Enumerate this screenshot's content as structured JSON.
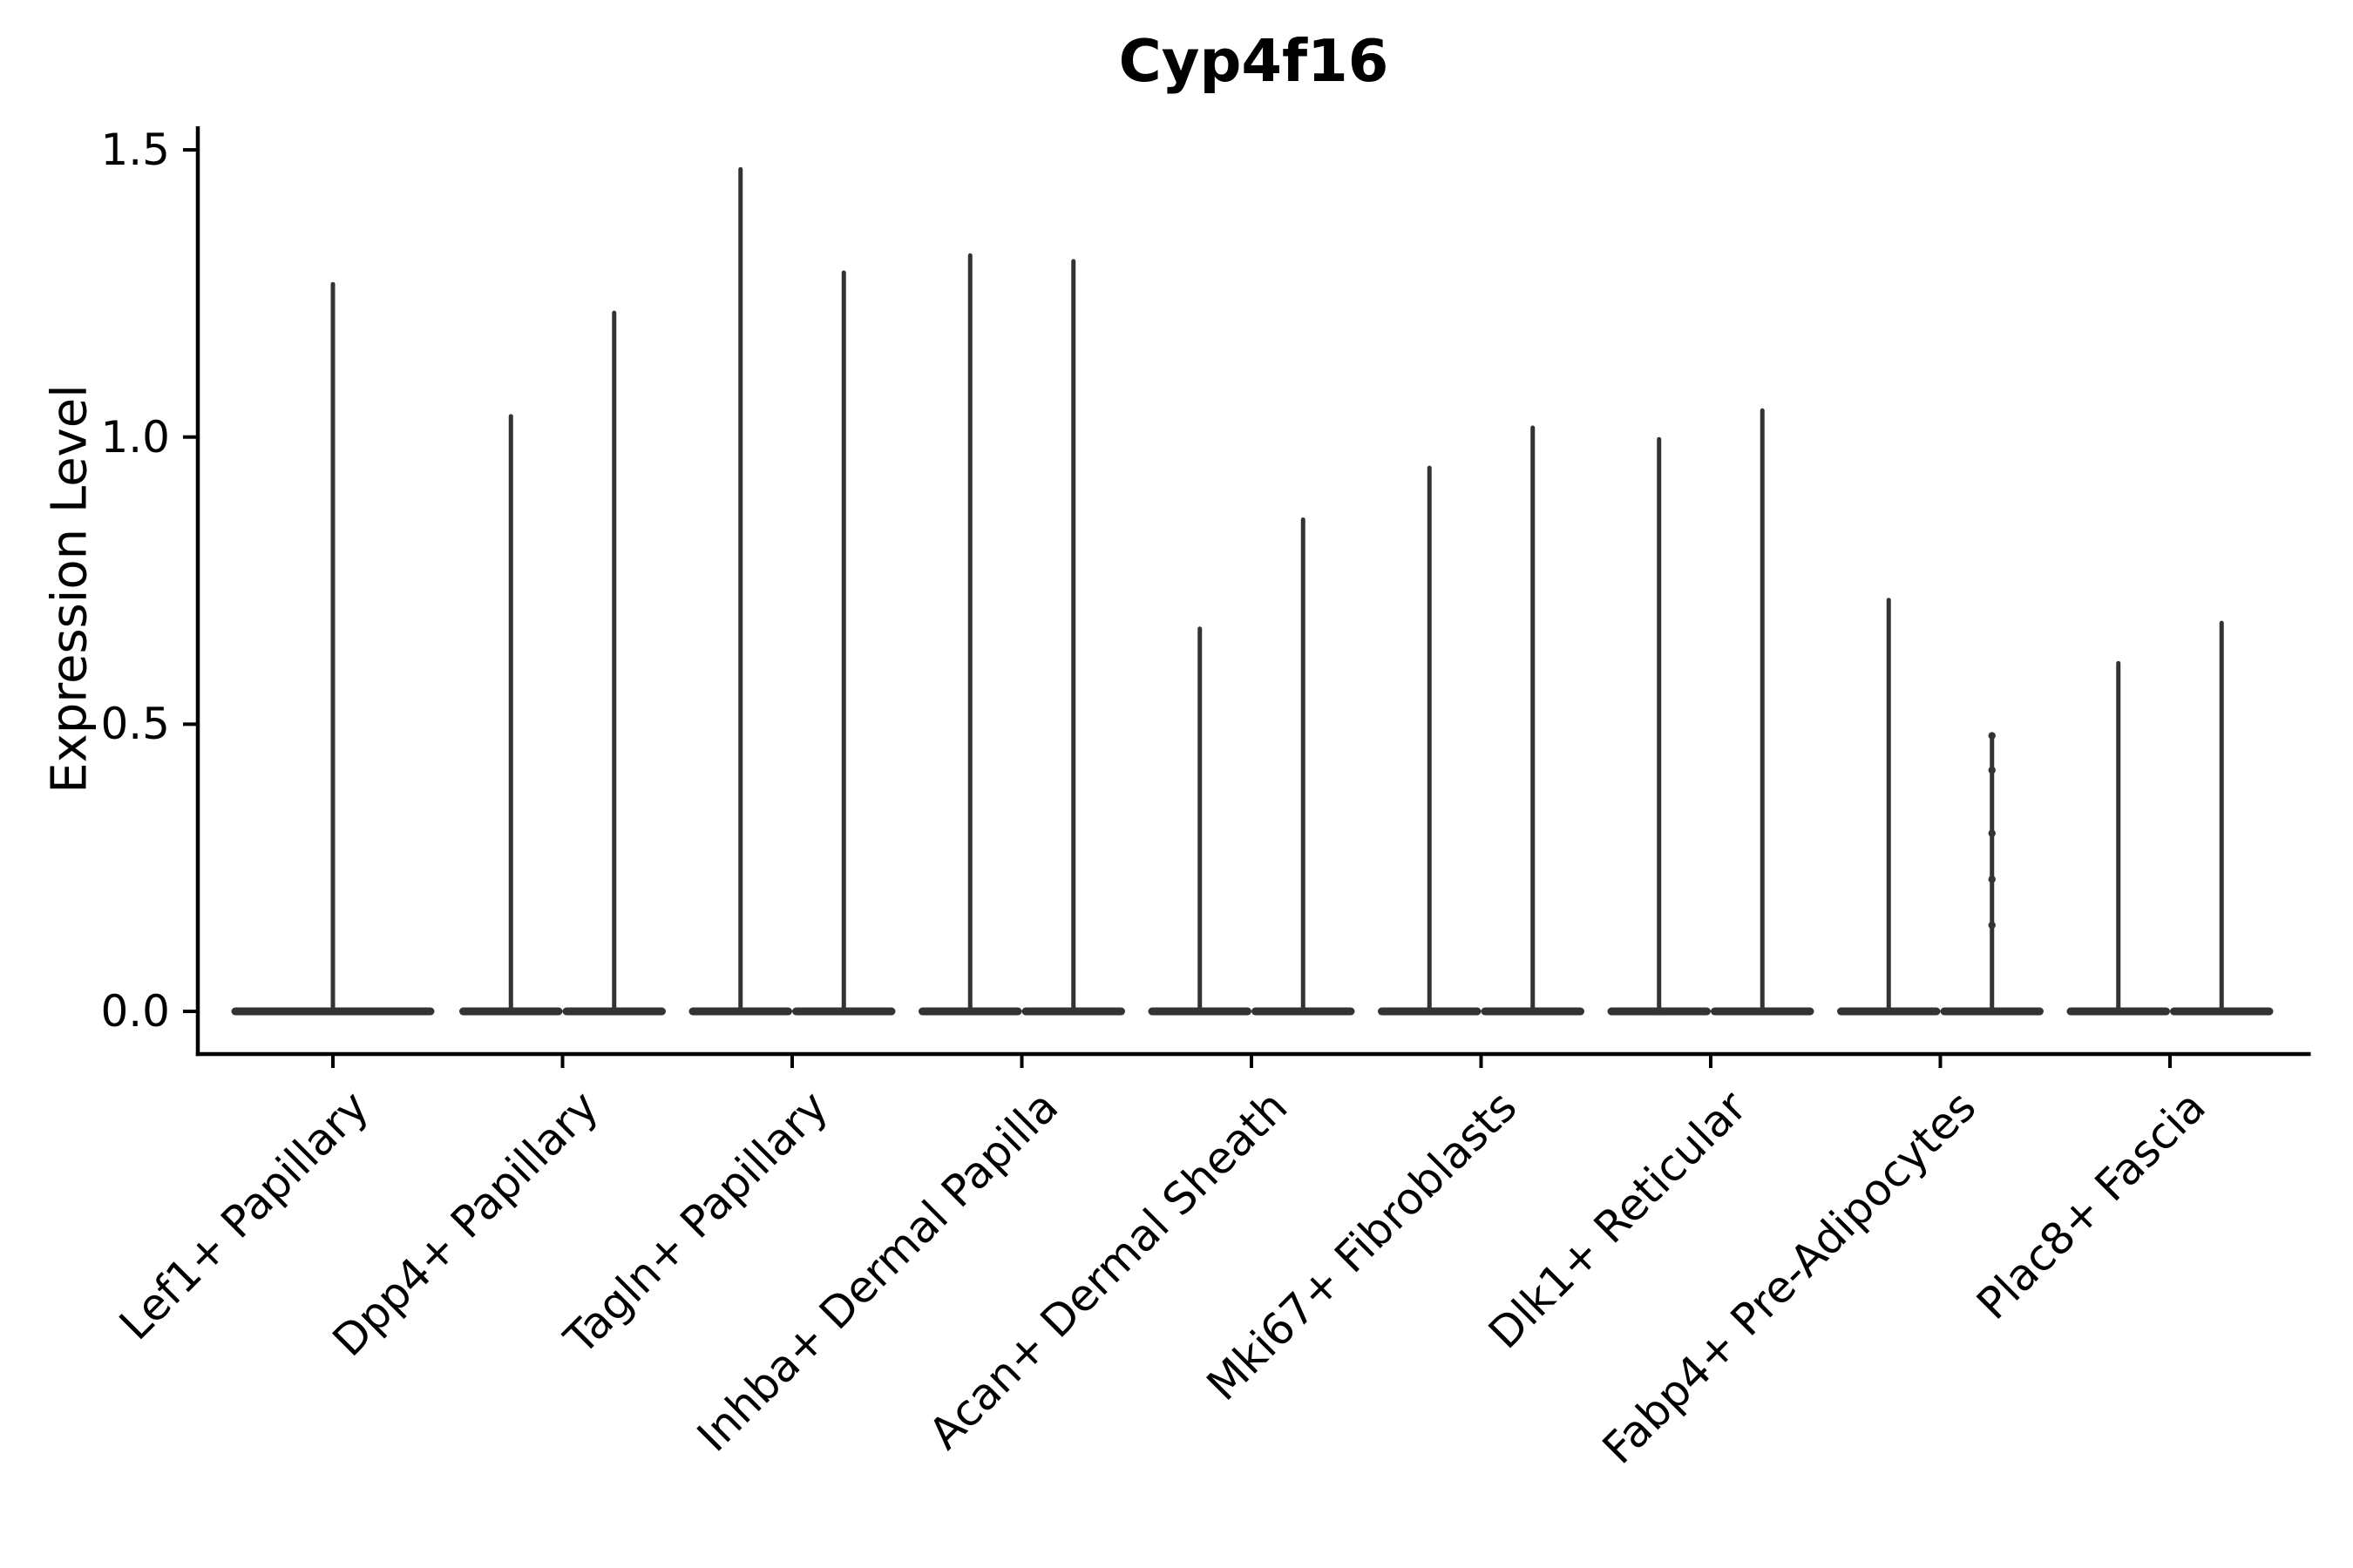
{
  "chart_data": {
    "type": "violin",
    "title": "Cyp4f16",
    "xlabel": "",
    "ylabel": "Expression Level",
    "ylim": [
      -0.07,
      1.57
    ],
    "yticks": [
      0.0,
      0.5,
      1.0,
      1.5
    ],
    "ytick_labels": [
      "0.0",
      "0.5",
      "1.0",
      "1.5"
    ],
    "grid": false,
    "legend": "none",
    "xtick_rotation_deg": 45,
    "baseline_value": 0.0,
    "categories": [
      "Lef1+ Papillary",
      "Dpp4+ Papillary",
      "Tagln+ Papillary",
      "Inhba+ Dermal Papilla",
      "Acan+ Dermal Sheath",
      "Mki67+ Fibroblasts",
      "Dlk1+ Reticular",
      "Fabp4+ Pre-Adipocytes",
      "Plac8+ Fascia"
    ],
    "series": [
      {
        "category": "Lef1+ Papillary",
        "violins": [
          {
            "max": 1.27
          }
        ]
      },
      {
        "category": "Dpp4+ Papillary",
        "violins": [
          {
            "max": 1.04
          },
          {
            "max": 1.22
          }
        ]
      },
      {
        "category": "Tagln+ Papillary",
        "violins": [
          {
            "max": 1.47
          },
          {
            "max": 1.29
          }
        ]
      },
      {
        "category": "Inhba+ Dermal Papilla",
        "violins": [
          {
            "max": 1.32
          },
          {
            "max": 1.31
          }
        ]
      },
      {
        "category": "Acan+ Dermal Sheath",
        "violins": [
          {
            "max": 0.67
          },
          {
            "max": 0.86
          }
        ]
      },
      {
        "category": "Mki67+ Fibroblasts",
        "violins": [
          {
            "max": 0.95
          },
          {
            "max": 1.02
          }
        ]
      },
      {
        "category": "Dlk1+ Reticular",
        "violins": [
          {
            "max": 1.0
          },
          {
            "max": 1.05
          }
        ]
      },
      {
        "category": "Fabp4+ Pre-Adipocytes",
        "violins": [
          {
            "max": 0.72
          },
          {
            "max": 0.48,
            "visible_points": [
              0.48,
              0.42,
              0.31,
              0.23,
              0.15
            ]
          }
        ]
      },
      {
        "category": "Plac8+ Fascia",
        "violins": [
          {
            "max": 0.61
          },
          {
            "max": 0.68
          }
        ]
      }
    ],
    "colors": {
      "violin": "#333333",
      "axis": "#000000",
      "text": "#000000",
      "background": "#ffffff"
    }
  }
}
